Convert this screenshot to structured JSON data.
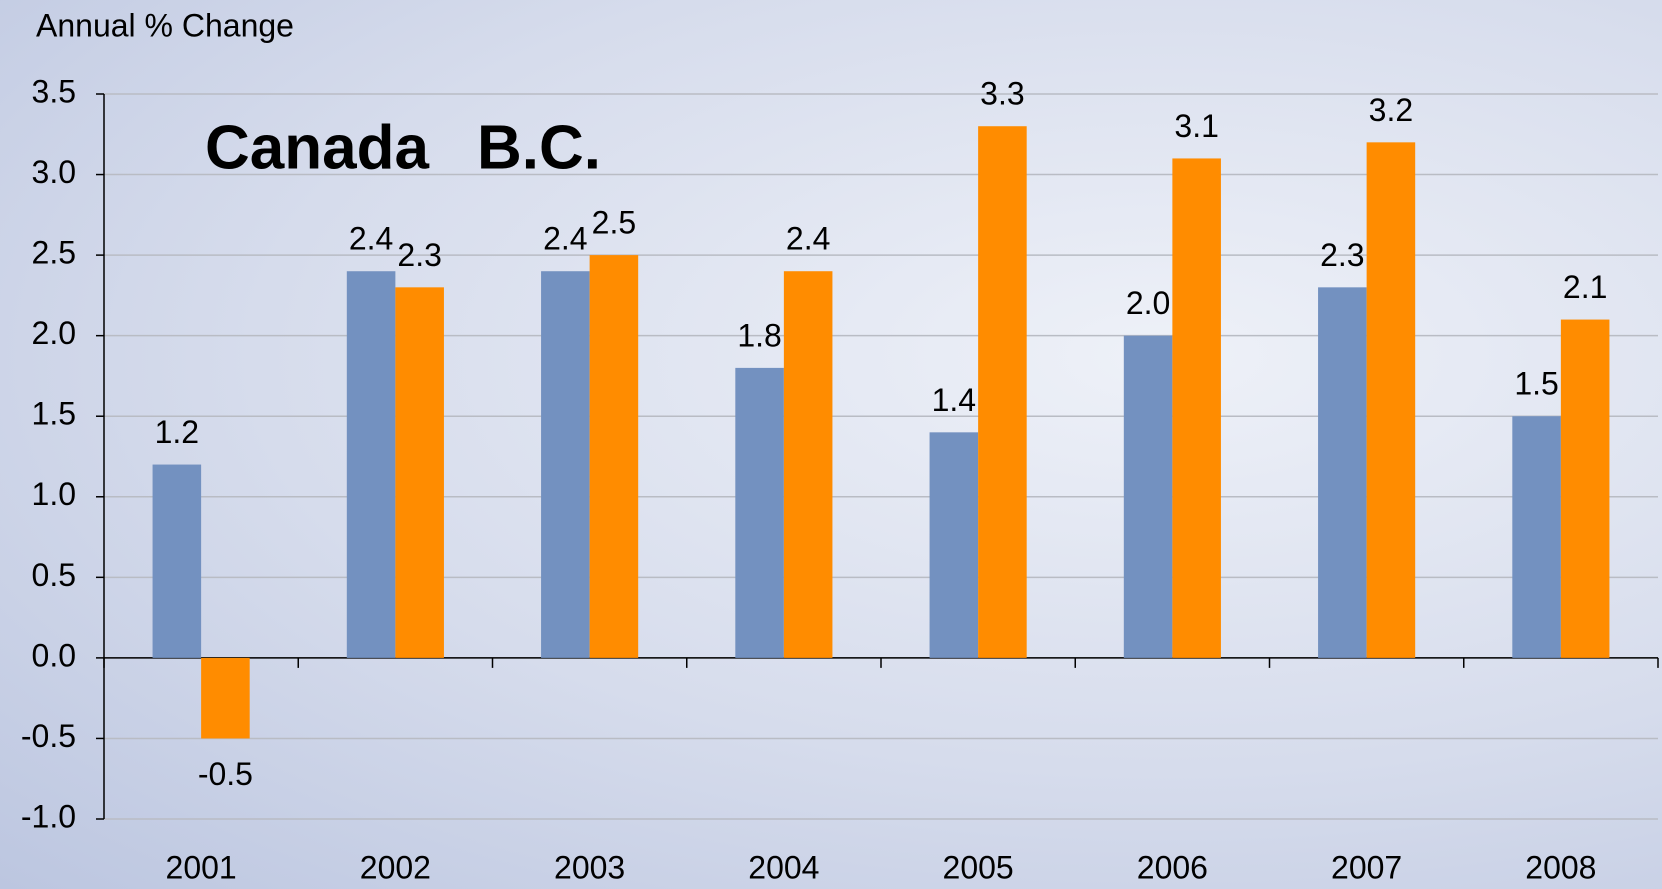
{
  "chart_data": {
    "type": "bar",
    "y_label": "Annual % Change",
    "categories": [
      "2001",
      "2002",
      "2003",
      "2004",
      "2005",
      "2006",
      "2007",
      "2008"
    ],
    "series": [
      {
        "name": "Canada",
        "color": "#7391c0",
        "values": [
          1.2,
          2.4,
          2.4,
          1.8,
          1.4,
          2.0,
          2.3,
          1.5
        ],
        "value_labels": [
          "1.2",
          "2.4",
          "2.4",
          "1.8",
          "1.4",
          "2.0",
          "2.3",
          "1.5"
        ]
      },
      {
        "name": "B.C.",
        "color": "#ff8c00",
        "values": [
          -0.5,
          2.3,
          2.5,
          2.4,
          3.3,
          3.1,
          3.2,
          2.1
        ],
        "value_labels": [
          "-0.5",
          "2.3",
          "2.5",
          "2.4",
          "3.3",
          "3.1",
          "3.2",
          "2.1"
        ]
      }
    ],
    "ylim": [
      -1,
      3.5
    ],
    "yticks": [
      {
        "value": -1,
        "label": "-1.0"
      },
      -0.5,
      {
        "value": 0,
        "label": "0.0"
      },
      0.5,
      {
        "value": 1,
        "label": "1.0"
      },
      1.5,
      {
        "value": 2,
        "label": "2.0"
      },
      2.5,
      {
        "value": 3,
        "label": "3.0"
      },
      3.5
    ],
    "grid": true,
    "legend": "upper left"
  }
}
